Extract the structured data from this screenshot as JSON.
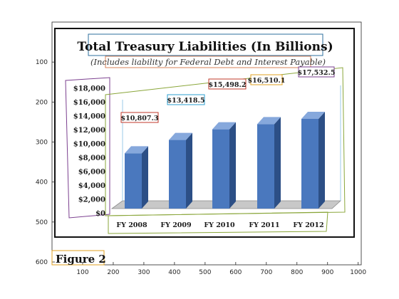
{
  "axes_frame": {
    "x_ticks": [
      "100",
      "200",
      "300",
      "400",
      "500",
      "600",
      "700",
      "800",
      "900",
      "1000"
    ],
    "y_ticks": [
      "100",
      "200",
      "300",
      "400",
      "500",
      "600"
    ]
  },
  "chart_data": {
    "type": "bar",
    "title": "Total Treasury Liabilities (In Billions)",
    "subtitle": "(Includes liability for Federal Debt and Interest Payable)",
    "categories": [
      "FY 2008",
      "FY 2009",
      "FY 2010",
      "FY 2011",
      "FY 2012"
    ],
    "values": [
      10807.3,
      13418.5,
      15498.2,
      16510.1,
      17532.5
    ],
    "value_labels": [
      "$10,807.3",
      "$13,418.5",
      "$15,498.2",
      "$16,510.1",
      "$17,532.5"
    ],
    "y_tick_labels": [
      "$0",
      "$2,000",
      "$4,000",
      "$6,000",
      "$8,000",
      "$10,000",
      "$12,000",
      "$14,000",
      "$16,000",
      "$18,000"
    ],
    "ylim": [
      0,
      18000
    ],
    "grid": false,
    "legend": "none",
    "caption": "Figure 2",
    "colors": {
      "bar_front": "#4a78be",
      "bar_side": "#2c4f86",
      "bar_top": "#86a8dc",
      "title_box": "#2e6f9e",
      "subtitle_box": "#d9835a",
      "y_axis_box": "#7b3f8f",
      "plot_box": "#8aa63a",
      "label_boxes": [
        "#c0392b",
        "#2b9fd0",
        "#c0392b",
        "#e0a020",
        "#7b3f8f"
      ]
    }
  }
}
